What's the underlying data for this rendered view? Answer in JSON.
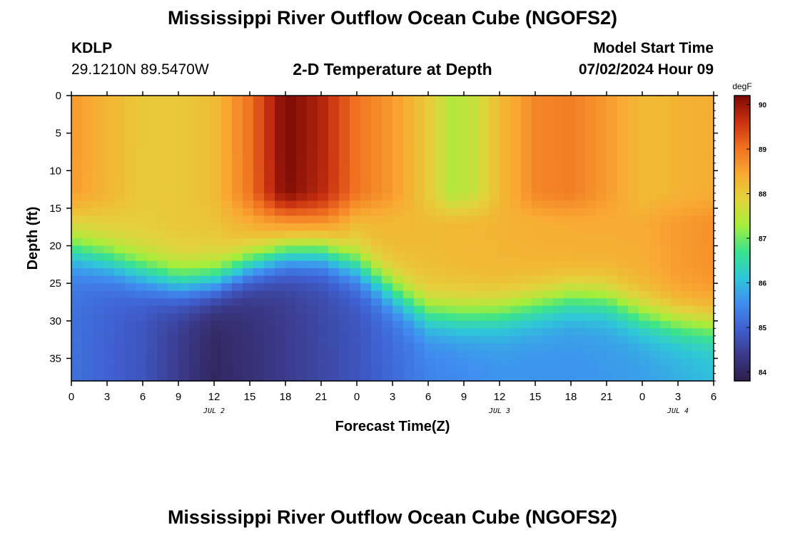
{
  "header": {
    "title": "Mississippi River Outflow Ocean Cube (NGOFS2)",
    "station": "KDLP",
    "coords": "29.1210N  89.5470W",
    "subtitle": "2-D Temperature at Depth",
    "start_label": "Model Start Time",
    "start_value": "07/02/2024 Hour 09"
  },
  "footer": {
    "title": "Mississippi River Outflow Ocean Cube (NGOFS2)"
  },
  "colors": {
    "scale": [
      "#2d1e4a",
      "#3b3a8a",
      "#3f5fcf",
      "#3f8ef0",
      "#2ec8d8",
      "#3be38c",
      "#a6ee3a",
      "#e3d33a",
      "#f9a832",
      "#f07020",
      "#c83010",
      "#7a0a05"
    ]
  },
  "chart_data": {
    "type": "heatmap",
    "title": "2-D Temperature at Depth",
    "xlabel": "Forecast Time(Z)",
    "ylabel": "Depth (ft)",
    "x_ticks": [
      "0",
      "3",
      "6",
      "9",
      "12",
      "15",
      "18",
      "21",
      "0",
      "3",
      "6",
      "9",
      "12",
      "15",
      "18",
      "21",
      "0",
      "3",
      "6"
    ],
    "x_hours_range": [
      0,
      54
    ],
    "day_labels": [
      {
        "label": "JUL 2",
        "hour": 12
      },
      {
        "label": "JUL 3",
        "hour": 36
      },
      {
        "label": "JUL 4",
        "hour": 51
      }
    ],
    "y_ticks": [
      "0",
      "5",
      "10",
      "15",
      "20",
      "25",
      "30",
      "35"
    ],
    "ylim": [
      0,
      38
    ],
    "colorbar": {
      "unit": "degF",
      "ticks": [
        "84",
        "85",
        "86",
        "87",
        "88",
        "89",
        "90"
      ],
      "range": [
        83.8,
        90.2
      ]
    },
    "surface_temp": [
      [
        0,
        88.6
      ],
      [
        3,
        88.3
      ],
      [
        6,
        88.0
      ],
      [
        9,
        88.0
      ],
      [
        12,
        88.2
      ],
      [
        15,
        89.0
      ],
      [
        18,
        90.2
      ],
      [
        21,
        89.8
      ],
      [
        24,
        89.0
      ],
      [
        27,
        88.6
      ],
      [
        30,
        88.0
      ],
      [
        32,
        87.4
      ],
      [
        34,
        87.6
      ],
      [
        36,
        88.2
      ],
      [
        39,
        88.8
      ],
      [
        42,
        88.9
      ],
      [
        45,
        88.6
      ],
      [
        48,
        88.2
      ],
      [
        51,
        88.3
      ],
      [
        54,
        88.4
      ]
    ],
    "mid_layer_temp": [
      [
        0,
        88.1
      ],
      [
        6,
        88.0
      ],
      [
        12,
        88.1
      ],
      [
        15,
        88.5
      ],
      [
        18,
        89.0
      ],
      [
        21,
        89.1
      ],
      [
        24,
        88.3
      ],
      [
        30,
        88.2
      ],
      [
        36,
        88.3
      ],
      [
        42,
        88.4
      ],
      [
        48,
        88.4
      ],
      [
        51,
        88.6
      ],
      [
        54,
        88.7
      ]
    ],
    "deep_temp": [
      [
        0,
        85.2
      ],
      [
        6,
        84.8
      ],
      [
        12,
        84.0
      ],
      [
        18,
        84.4
      ],
      [
        24,
        84.8
      ],
      [
        30,
        85.4
      ],
      [
        36,
        85.6
      ],
      [
        42,
        85.6
      ],
      [
        48,
        85.7
      ],
      [
        54,
        86.0
      ]
    ],
    "thermocline_depth_ft": [
      [
        0,
        20.5
      ],
      [
        3,
        21.8
      ],
      [
        6,
        23.5
      ],
      [
        9,
        25.0
      ],
      [
        12,
        24.8
      ],
      [
        15,
        22.5
      ],
      [
        18,
        20.8
      ],
      [
        21,
        20.5
      ],
      [
        24,
        22.5
      ],
      [
        27,
        26.0
      ],
      [
        30,
        29.0
      ],
      [
        33,
        29.3
      ],
      [
        36,
        29.0
      ],
      [
        39,
        28.0
      ],
      [
        42,
        27.0
      ],
      [
        45,
        27.2
      ],
      [
        48,
        29.2
      ],
      [
        51,
        30.2
      ],
      [
        54,
        30.6
      ]
    ]
  }
}
